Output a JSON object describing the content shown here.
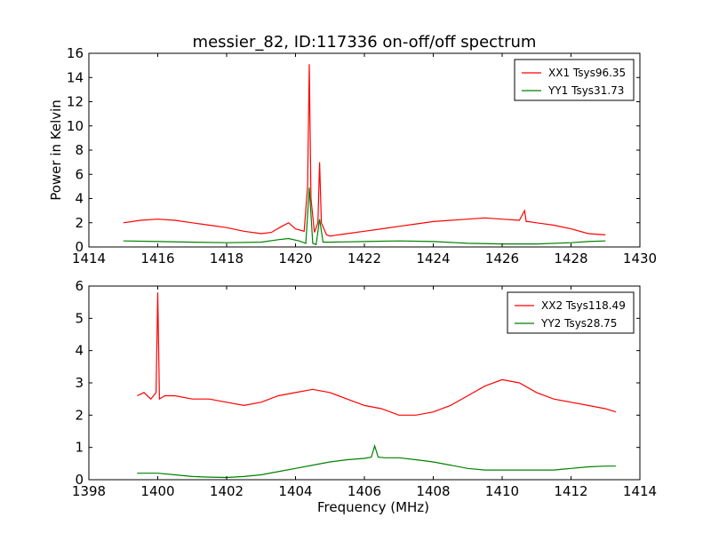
{
  "title": "messier_82, ID:117336 on-off/off spectrum",
  "colors": {
    "xx": "#ff0000",
    "yy": "#008000",
    "axes": "#000000",
    "background": "#ffffff"
  },
  "chart_data": [
    {
      "type": "line",
      "xlabel": "",
      "ylabel": "Power in Kelvin",
      "xlim": [
        1414,
        1430
      ],
      "ylim": [
        0,
        16
      ],
      "x_ticks": [
        1414,
        1416,
        1418,
        1420,
        1422,
        1424,
        1426,
        1428,
        1430
      ],
      "y_ticks": [
        0,
        2,
        4,
        6,
        8,
        10,
        12,
        14,
        16
      ],
      "grid": false,
      "legend_position": "top-right",
      "series": [
        {
          "name": "XX1 Tsys96.35",
          "color": "#ff0000",
          "x": [
            1415.0,
            1415.5,
            1416.0,
            1416.5,
            1417.0,
            1417.5,
            1418.0,
            1418.5,
            1419.0,
            1419.3,
            1419.6,
            1419.8,
            1420.0,
            1420.25,
            1420.35,
            1420.4,
            1420.45,
            1420.55,
            1420.65,
            1420.7,
            1420.75,
            1420.9,
            1421.0,
            1421.5,
            1422.0,
            1422.5,
            1423.0,
            1423.5,
            1424.0,
            1424.5,
            1425.0,
            1425.5,
            1426.0,
            1426.5,
            1426.65,
            1426.7,
            1426.75,
            1427.0,
            1427.5,
            1428.0,
            1428.5,
            1429.0
          ],
          "y": [
            2.0,
            2.2,
            2.3,
            2.2,
            2.0,
            1.8,
            1.6,
            1.3,
            1.1,
            1.2,
            1.7,
            2.0,
            1.5,
            1.3,
            5.0,
            15.1,
            4.0,
            1.2,
            2.0,
            7.0,
            2.0,
            1.0,
            0.9,
            1.1,
            1.3,
            1.5,
            1.7,
            1.9,
            2.1,
            2.2,
            2.3,
            2.4,
            2.3,
            2.2,
            3.0,
            2.1,
            2.1,
            2.0,
            1.8,
            1.5,
            1.1,
            1.0
          ]
        },
        {
          "name": "YY1 Tsys31.73",
          "color": "#008000",
          "x": [
            1415.0,
            1416.0,
            1417.0,
            1418.0,
            1419.0,
            1419.5,
            1419.8,
            1420.1,
            1420.3,
            1420.4,
            1420.5,
            1420.6,
            1420.7,
            1420.8,
            1421.0,
            1422.0,
            1423.0,
            1424.0,
            1425.0,
            1426.0,
            1427.0,
            1428.0,
            1428.5,
            1429.0
          ],
          "y": [
            0.5,
            0.45,
            0.4,
            0.35,
            0.4,
            0.6,
            0.7,
            0.5,
            0.3,
            4.9,
            0.3,
            0.2,
            2.3,
            0.4,
            0.4,
            0.45,
            0.5,
            0.45,
            0.3,
            0.25,
            0.25,
            0.35,
            0.45,
            0.5
          ]
        }
      ]
    },
    {
      "type": "line",
      "xlabel": "Frequency (MHz)",
      "ylabel": "",
      "xlim": [
        1398,
        1414
      ],
      "ylim": [
        0,
        6
      ],
      "x_ticks": [
        1398,
        1400,
        1402,
        1404,
        1406,
        1408,
        1410,
        1412,
        1414
      ],
      "y_ticks": [
        0,
        1,
        2,
        3,
        4,
        5,
        6
      ],
      "grid": false,
      "legend_position": "top-right",
      "series": [
        {
          "name": "XX2 Tsys118.49",
          "color": "#ff0000",
          "x": [
            1399.4,
            1399.6,
            1399.8,
            1399.95,
            1400.0,
            1400.05,
            1400.2,
            1400.5,
            1401.0,
            1401.5,
            1402.0,
            1402.5,
            1403.0,
            1403.5,
            1404.0,
            1404.5,
            1405.0,
            1405.5,
            1406.0,
            1406.5,
            1407.0,
            1407.5,
            1408.0,
            1408.5,
            1409.0,
            1409.5,
            1410.0,
            1410.5,
            1411.0,
            1411.5,
            1412.0,
            1412.5,
            1413.0,
            1413.3
          ],
          "y": [
            2.6,
            2.7,
            2.5,
            2.7,
            5.8,
            2.5,
            2.6,
            2.6,
            2.5,
            2.5,
            2.4,
            2.3,
            2.4,
            2.6,
            2.7,
            2.8,
            2.7,
            2.5,
            2.3,
            2.2,
            2.0,
            2.0,
            2.1,
            2.3,
            2.6,
            2.9,
            3.1,
            3.0,
            2.7,
            2.5,
            2.4,
            2.3,
            2.2,
            2.1
          ]
        },
        {
          "name": "YY2 Tsys28.75",
          "color": "#008000",
          "x": [
            1399.4,
            1400.0,
            1400.5,
            1401.0,
            1401.5,
            1402.0,
            1402.5,
            1403.0,
            1403.5,
            1404.0,
            1404.5,
            1405.0,
            1405.5,
            1406.0,
            1406.2,
            1406.3,
            1406.4,
            1406.6,
            1407.0,
            1407.5,
            1408.0,
            1408.5,
            1409.0,
            1409.5,
            1410.0,
            1410.5,
            1411.0,
            1411.5,
            1412.0,
            1412.5,
            1413.0,
            1413.3
          ],
          "y": [
            0.2,
            0.2,
            0.15,
            0.1,
            0.08,
            0.07,
            0.1,
            0.15,
            0.25,
            0.35,
            0.45,
            0.55,
            0.62,
            0.66,
            0.7,
            1.05,
            0.7,
            0.68,
            0.68,
            0.62,
            0.55,
            0.45,
            0.35,
            0.3,
            0.3,
            0.3,
            0.3,
            0.3,
            0.35,
            0.4,
            0.42,
            0.42
          ]
        }
      ]
    }
  ]
}
